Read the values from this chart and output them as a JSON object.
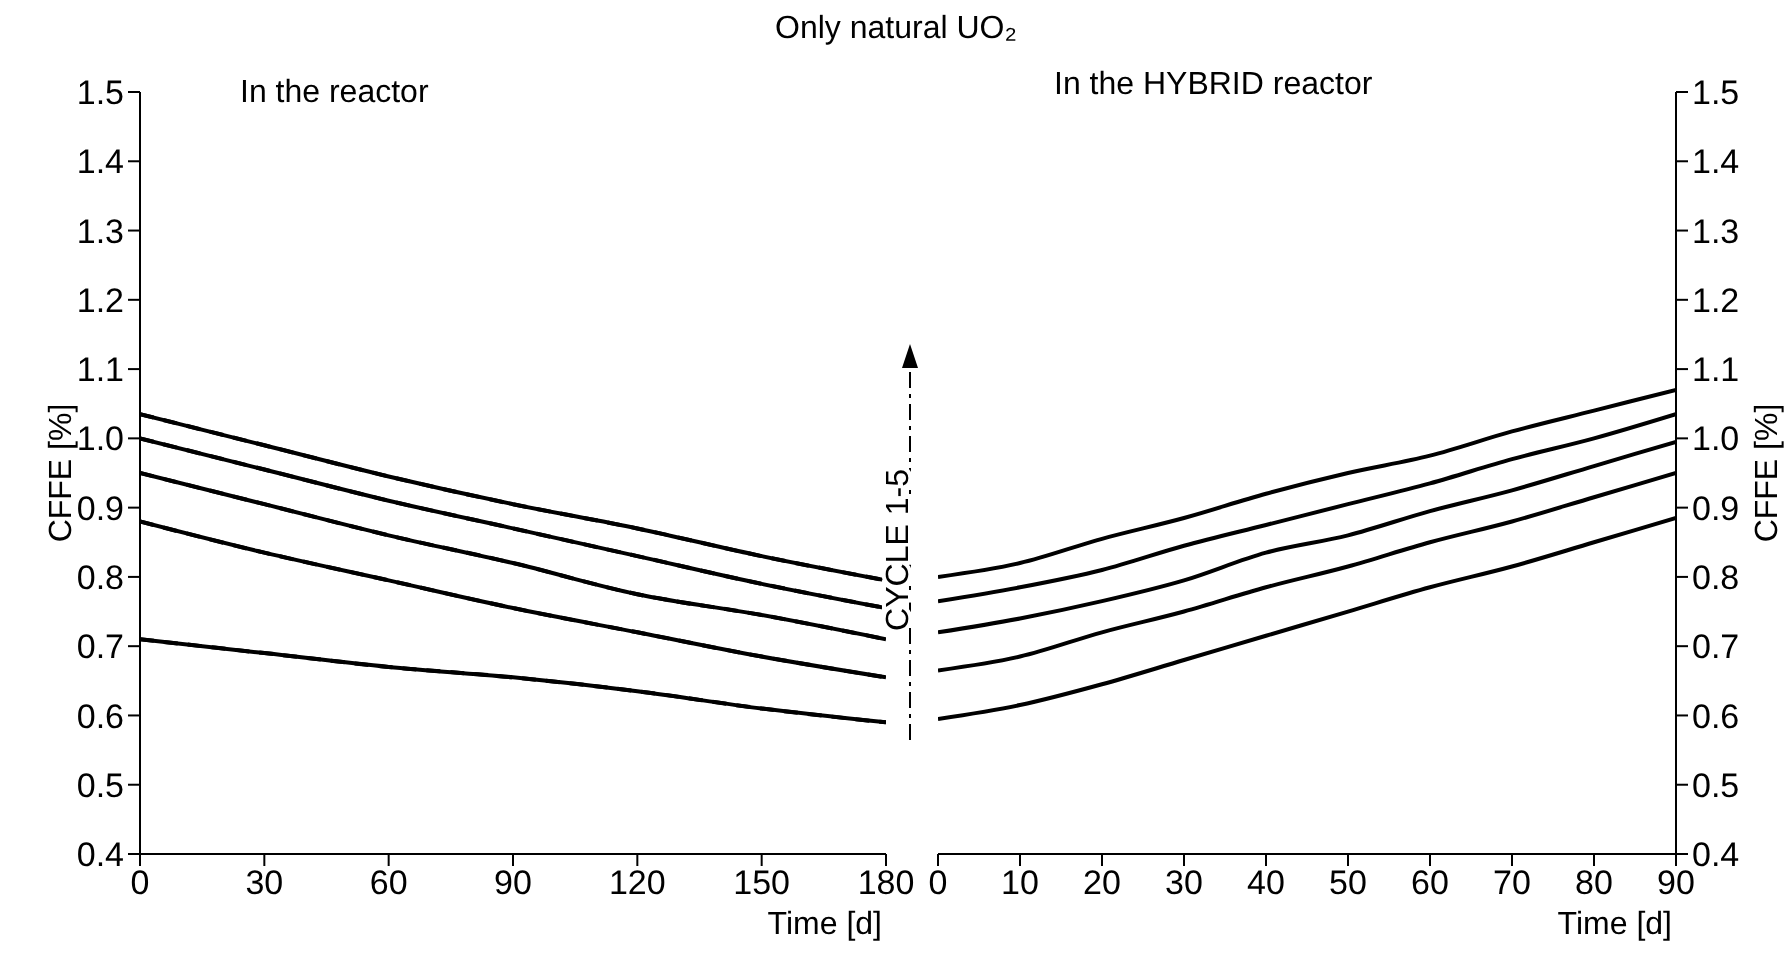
{
  "chart_data": [
    {
      "type": "line",
      "title": "Only natural UO₂",
      "xlabel": "Time [d]",
      "ylabel": "CFFE [%]",
      "annotations": [
        "In the reactor",
        "CYCLE 1-5"
      ],
      "x": [
        0,
        30,
        60,
        90,
        120,
        150,
        180
      ],
      "xlim": [
        0,
        180
      ],
      "xticks": [
        0,
        30,
        60,
        90,
        120,
        150,
        180
      ],
      "ylim": [
        0.4,
        1.5
      ],
      "yticks": [
        0.4,
        0.5,
        0.6,
        0.7,
        0.8,
        0.9,
        {
          "value": 1.0,
          "label": "1.0"
        },
        1.1,
        1.2,
        1.3,
        1.4,
        1.5
      ],
      "series": [
        {
          "color": "#000000",
          "line_style": "solid",
          "values": [
            1.035,
            0.99,
            0.945,
            0.905,
            0.87,
            0.83,
            0.795
          ]
        },
        {
          "color": "#000000",
          "line_style": "solid",
          "values": [
            1.0,
            0.955,
            0.91,
            0.87,
            0.83,
            0.79,
            0.755
          ]
        },
        {
          "color": "#000000",
          "line_style": "solid",
          "values": [
            0.95,
            0.905,
            0.86,
            0.82,
            0.775,
            0.745,
            0.71
          ]
        },
        {
          "color": "#000000",
          "line_style": "solid",
          "values": [
            0.88,
            0.835,
            0.795,
            0.755,
            0.72,
            0.685,
            0.655
          ]
        },
        {
          "color": "#000000",
          "line_style": "solid",
          "values": [
            0.71,
            0.69,
            0.67,
            0.655,
            0.635,
            0.61,
            0.59
          ]
        },
        {
          "color": "#000000",
          "line_style": "dashed",
          "values": [
            1.035,
            0.99,
            0.945,
            0.905,
            0.87,
            0.83,
            0.795
          ]
        },
        {
          "color": "#000000",
          "line_style": "dashed",
          "values": [
            1.0,
            0.955,
            0.91,
            0.87,
            0.83,
            0.79,
            0.755
          ]
        },
        {
          "color": "#000000",
          "line_style": "dashed",
          "values": [
            0.95,
            0.905,
            0.86,
            0.82,
            0.775,
            0.745,
            0.71
          ]
        },
        {
          "color": "#000000",
          "line_style": "dashed",
          "values": [
            0.88,
            0.835,
            0.795,
            0.755,
            0.72,
            0.685,
            0.655
          ]
        },
        {
          "color": "#000000",
          "line_style": "dashed",
          "values": [
            0.71,
            0.69,
            0.67,
            0.655,
            0.635,
            0.61,
            0.59
          ]
        }
      ]
    },
    {
      "type": "line",
      "xlabel": "Time [d]",
      "y2label": "CFFE [%]",
      "annotations": [
        "In the HYBRID reactor"
      ],
      "x": [
        0,
        10,
        20,
        30,
        40,
        50,
        60,
        70,
        80,
        90
      ],
      "xlim": [
        0,
        90
      ],
      "xticks": [
        0,
        10,
        20,
        30,
        40,
        50,
        60,
        70,
        80,
        90
      ],
      "y2lim": [
        0.4,
        1.5
      ],
      "y2ticks": [
        0.4,
        0.5,
        0.6,
        0.7,
        0.8,
        0.9,
        {
          "value": 1.0,
          "label": "1.0"
        },
        1.1,
        1.2,
        1.3,
        1.4,
        1.5
      ],
      "series": [
        {
          "color": "#000000",
          "line_style": "solid",
          "axis": "y2",
          "values": [
            0.8,
            0.82,
            0.855,
            0.885,
            0.92,
            0.95,
            0.975,
            1.01,
            1.04,
            1.07
          ]
        },
        {
          "color": "#000000",
          "line_style": "solid",
          "axis": "y2",
          "values": [
            0.765,
            0.785,
            0.81,
            0.845,
            0.875,
            0.905,
            0.935,
            0.97,
            1.0,
            1.035
          ]
        },
        {
          "color": "#000000",
          "line_style": "solid",
          "axis": "y2",
          "values": [
            0.72,
            0.74,
            0.765,
            0.795,
            0.835,
            0.86,
            0.895,
            0.925,
            0.96,
            0.995
          ]
        },
        {
          "color": "#000000",
          "line_style": "solid",
          "axis": "y2",
          "values": [
            0.665,
            0.685,
            0.72,
            0.75,
            0.785,
            0.815,
            0.85,
            0.88,
            0.915,
            0.95
          ]
        },
        {
          "color": "#000000",
          "line_style": "solid",
          "axis": "y2",
          "values": [
            0.595,
            0.615,
            0.645,
            0.68,
            0.715,
            0.75,
            0.785,
            0.815,
            0.85,
            0.885
          ]
        }
      ]
    }
  ]
}
